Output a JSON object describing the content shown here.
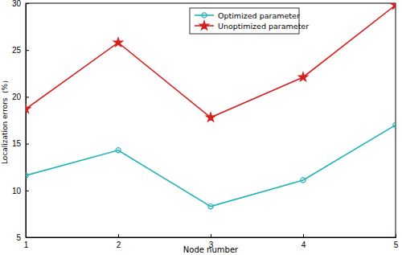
{
  "chart_data": {
    "type": "line",
    "x_label": "Node number",
    "y_label": "Localization errors（%）",
    "x": [
      1,
      2,
      3,
      4,
      5
    ],
    "series": [
      {
        "name": "Optimized parameter",
        "color": "#1fb3b8",
        "marker": "circle",
        "values": [
          11.6,
          14.3,
          8.3,
          11.1,
          17.0
        ]
      },
      {
        "name": "Unoptimized parameter",
        "color": "#d42020",
        "marker": "star",
        "values": [
          18.7,
          25.8,
          17.8,
          22.1,
          29.8
        ]
      }
    ],
    "xlim": [
      1,
      5
    ],
    "xticks": [
      1,
      2,
      3,
      4,
      5
    ],
    "ylim": [
      5,
      30
    ],
    "yticks": [
      5,
      10,
      15,
      20,
      25,
      30
    ],
    "legend": "upper right"
  }
}
